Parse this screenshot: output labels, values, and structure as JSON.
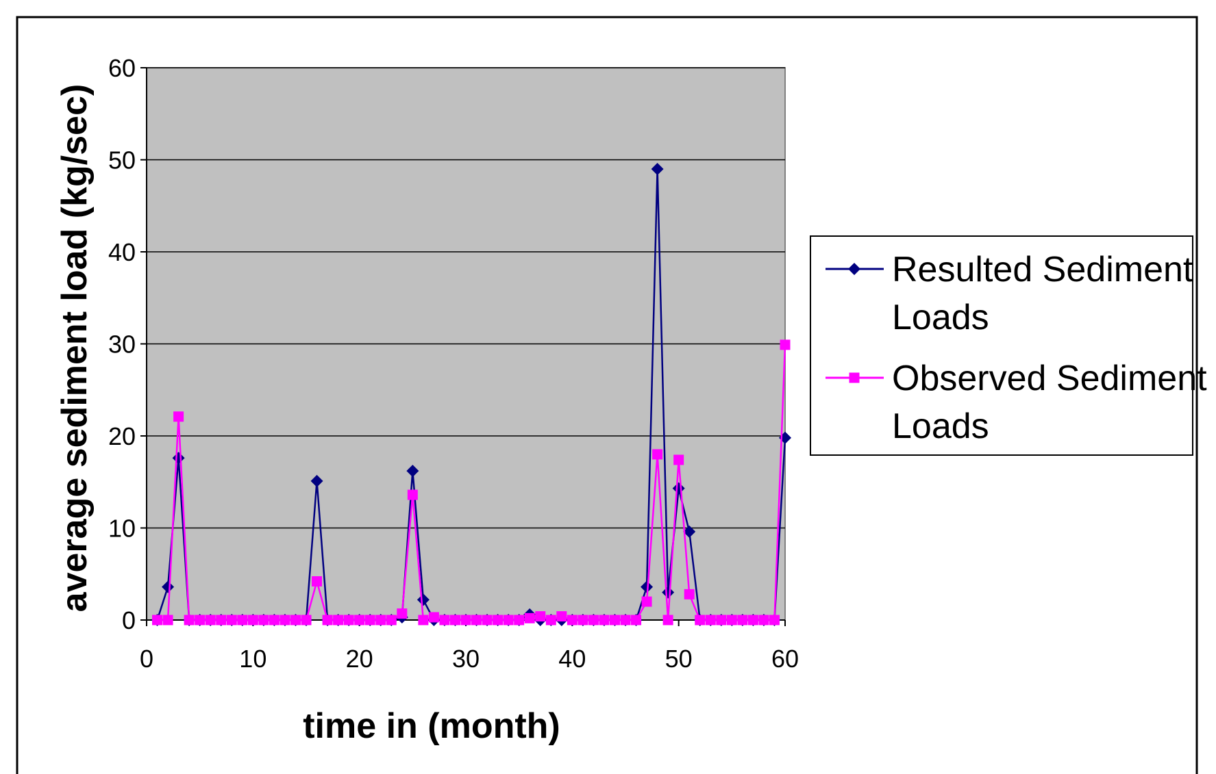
{
  "chart_data": {
    "type": "line",
    "title": "",
    "xlabel": "time in (month)",
    "ylabel": "average sediment load (kg/sec)",
    "xlim": [
      0,
      60
    ],
    "ylim": [
      0,
      60
    ],
    "x_ticks": [
      0,
      10,
      20,
      30,
      40,
      50,
      60
    ],
    "y_ticks": [
      0,
      10,
      20,
      30,
      40,
      50,
      60
    ],
    "grid": "horizontal",
    "legend_position": "right",
    "plot_background": "#c0c0c0",
    "x": [
      1,
      2,
      3,
      4,
      5,
      6,
      7,
      8,
      9,
      10,
      11,
      12,
      13,
      14,
      15,
      16,
      17,
      18,
      19,
      20,
      21,
      22,
      23,
      24,
      25,
      26,
      27,
      28,
      29,
      30,
      31,
      32,
      33,
      34,
      35,
      36,
      37,
      38,
      39,
      40,
      41,
      42,
      43,
      44,
      45,
      46,
      47,
      48,
      49,
      50,
      51,
      52,
      53,
      54,
      55,
      56,
      57,
      58,
      59,
      60
    ],
    "series": [
      {
        "name": "Resulted Sediment Loads",
        "color": "#000080",
        "marker": "diamond",
        "values": [
          0,
          3.6,
          17.6,
          0,
          0,
          0,
          0,
          0,
          0,
          0,
          0,
          0,
          0,
          0,
          0,
          15.1,
          0,
          0,
          0,
          0,
          0,
          0,
          0,
          0.3,
          16.2,
          2.2,
          0,
          0,
          0,
          0,
          0,
          0,
          0,
          0,
          0,
          0.6,
          0,
          0,
          0,
          0,
          0,
          0,
          0,
          0,
          0,
          0,
          3.6,
          49,
          3,
          14.3,
          9.6,
          0,
          0,
          0,
          0,
          0,
          0,
          0,
          0,
          19.8
        ]
      },
      {
        "name": "Observed Sediment Loads",
        "color": "#ff00ff",
        "marker": "square",
        "values": [
          0,
          0,
          22.1,
          0,
          0,
          0,
          0,
          0,
          0,
          0,
          0,
          0,
          0,
          0,
          0,
          4.2,
          0,
          0,
          0,
          0,
          0,
          0,
          0,
          0.7,
          13.6,
          0,
          0.3,
          0,
          0,
          0,
          0,
          0,
          0,
          0,
          0,
          0.2,
          0.4,
          0,
          0.4,
          0,
          0,
          0,
          0,
          0,
          0,
          0,
          2,
          18,
          0,
          17.4,
          2.8,
          0,
          0,
          0,
          0,
          0,
          0,
          0,
          0,
          29.9
        ]
      }
    ]
  }
}
